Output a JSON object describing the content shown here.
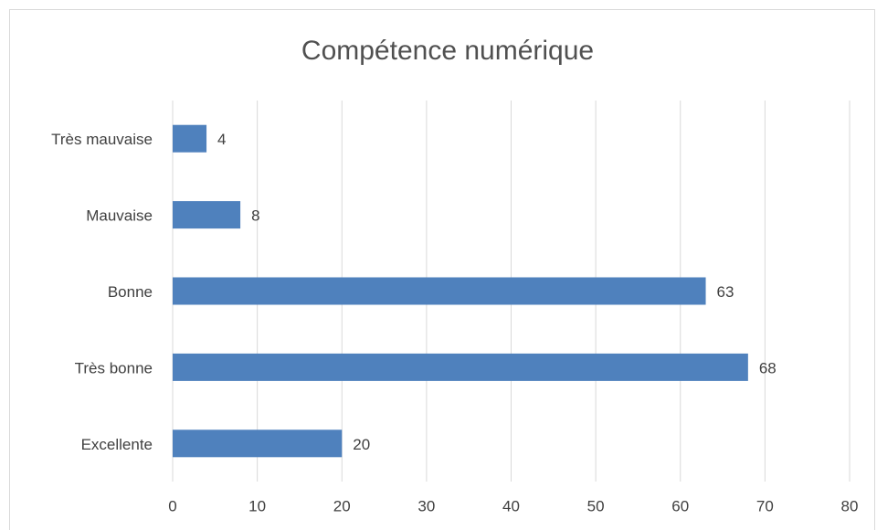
{
  "chart_data": {
    "type": "bar",
    "orientation": "horizontal",
    "title": "Compétence numérique",
    "categories": [
      "Très mauvaise",
      "Mauvaise",
      "Bonne",
      "Très bonne",
      "Excellente"
    ],
    "values": [
      4,
      8,
      63,
      68,
      20
    ],
    "color": "#4f81bd",
    "xlim": [
      0,
      80
    ],
    "xticks": [
      0,
      10,
      20,
      30,
      40,
      50,
      60,
      70,
      80
    ],
    "grid": true
  }
}
